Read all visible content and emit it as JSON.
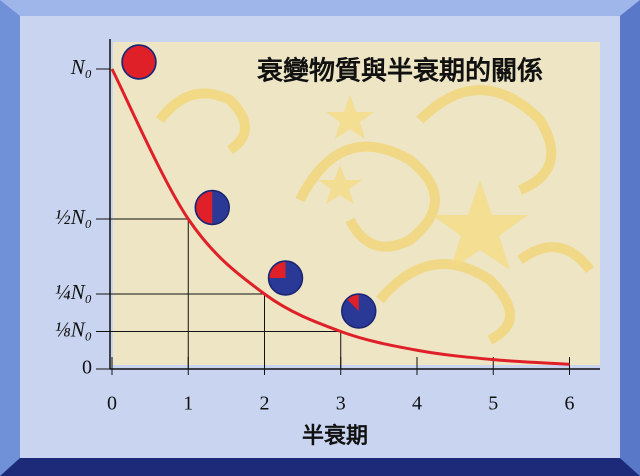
{
  "chart_data": {
    "type": "line",
    "title": "衰變物質與半衰期的關係",
    "x_label": "半衰期",
    "x": [
      0,
      1,
      2,
      3,
      4,
      5,
      6
    ],
    "values": [
      1,
      0.5,
      0.25,
      0.125,
      0.0625,
      0.03125,
      0.015625
    ],
    "color": "#e02028",
    "xlim": [
      0,
      6.4
    ],
    "xticks": [
      0,
      1,
      2,
      3,
      4,
      5,
      6
    ],
    "ylim": [
      0,
      1.1
    ],
    "yticks": [
      0,
      {
        "value": 0.125,
        "label": "⅛N₀"
      },
      {
        "value": 0.25,
        "label": "¼N₀"
      },
      {
        "value": 0.5,
        "label": "½N₀"
      },
      {
        "value": 1,
        "label": "N₀"
      }
    ]
  }
}
